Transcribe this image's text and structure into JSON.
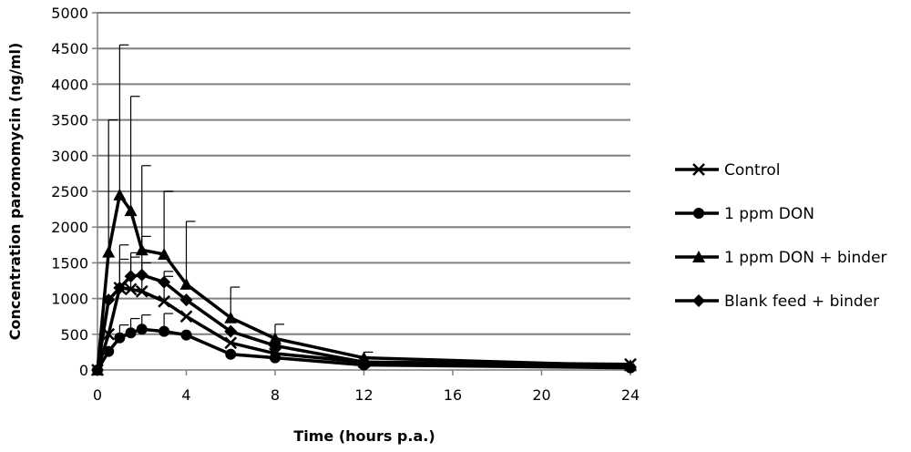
{
  "chart_data": {
    "type": "line",
    "xlabel": "Time (hours p.a.)",
    "ylabel": "Concentration paromomycin  (ng/ml)",
    "xlim": [
      0,
      24
    ],
    "ylim": [
      0,
      5000
    ],
    "x_ticks": [
      0,
      4,
      8,
      12,
      16,
      20,
      24
    ],
    "y_ticks": [
      0,
      500,
      1000,
      1500,
      2000,
      2500,
      3000,
      3500,
      4000,
      4500,
      5000
    ],
    "grid": "horizontal",
    "legend_position": "right",
    "series": [
      {
        "name": "Control",
        "marker": "x",
        "x": [
          0,
          0.5,
          1,
          1.5,
          2,
          3,
          4,
          6,
          8,
          12,
          24
        ],
        "y": [
          0,
          500,
          1150,
          1130,
          1100,
          960,
          750,
          380,
          230,
          110,
          80
        ],
        "error": [
          0,
          0,
          400,
          450,
          400,
          350,
          0,
          0,
          0,
          0,
          0
        ]
      },
      {
        "name": "1 ppm DON",
        "marker": "circle",
        "x": [
          0,
          0.5,
          1,
          1.5,
          2,
          3,
          4,
          6,
          8,
          12,
          24
        ],
        "y": [
          0,
          260,
          450,
          520,
          570,
          540,
          490,
          220,
          170,
          70,
          30
        ],
        "error": [
          0,
          0,
          180,
          200,
          200,
          250,
          0,
          0,
          0,
          0,
          0
        ]
      },
      {
        "name": "1 ppm DON + binder",
        "marker": "triangle",
        "x": [
          0,
          0.5,
          1,
          1.5,
          2,
          3,
          4,
          6,
          8,
          12,
          24
        ],
        "y": [
          0,
          1650,
          2450,
          2230,
          1680,
          1620,
          1200,
          730,
          440,
          170,
          60
        ],
        "error": [
          0,
          1850,
          2100,
          1600,
          1180,
          880,
          880,
          430,
          200,
          80,
          0
        ]
      },
      {
        "name": "Blank feed + binder",
        "marker": "diamond",
        "x": [
          0,
          0.5,
          1,
          1.5,
          2,
          3,
          4,
          6,
          8,
          12,
          24
        ],
        "y": [
          0,
          980,
          1150,
          1310,
          1330,
          1230,
          980,
          540,
          340,
          110,
          40
        ],
        "error": [
          0,
          0,
          600,
          330,
          540,
          150,
          0,
          0,
          0,
          0,
          0
        ]
      }
    ]
  }
}
